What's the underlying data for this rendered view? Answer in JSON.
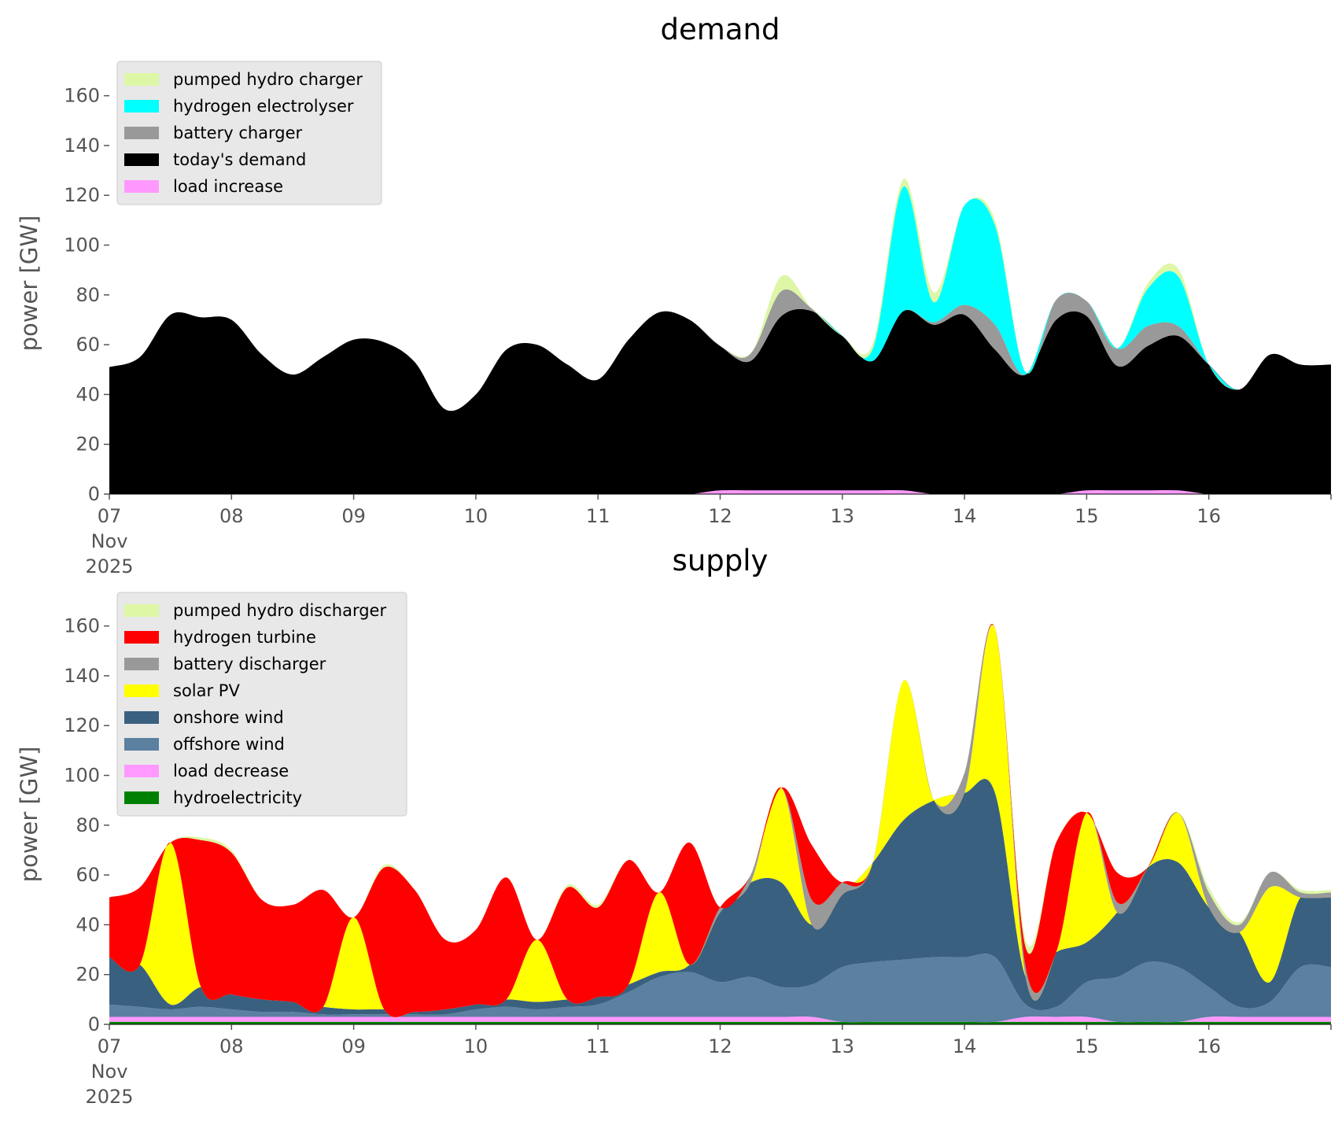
{
  "chart_data": [
    {
      "type": "area",
      "stacked": true,
      "title": "demand",
      "ylabel": "power [GW]",
      "ylim": [
        0,
        170
      ],
      "yticks": [
        0,
        20,
        40,
        60,
        80,
        100,
        120,
        140,
        160
      ],
      "xlim": [
        "2025-11-07",
        "2025-11-17"
      ],
      "xtick_labels": [
        "07\nNov\n2025",
        "08",
        "09",
        "10",
        "11",
        "12",
        "13",
        "14",
        "15",
        "16"
      ],
      "grid": false,
      "legend_position": "top-left",
      "x_hours": [
        0,
        6,
        12,
        18,
        24,
        30,
        36,
        42,
        48,
        54,
        60,
        66,
        72,
        78,
        84,
        90,
        96,
        102,
        108,
        114,
        120,
        126,
        132,
        138,
        144,
        150,
        156,
        162,
        168,
        174,
        180,
        186,
        192,
        198,
        204,
        210,
        216,
        222,
        228,
        234
      ],
      "series": [
        {
          "name": "load increase",
          "color": "#ff99ff",
          "values": [
            0,
            0,
            0,
            0,
            0,
            0,
            0,
            0,
            0,
            0,
            0,
            0,
            0,
            0,
            0,
            0,
            0,
            0,
            0,
            0,
            1.5,
            1.5,
            1.5,
            1.5,
            1.5,
            1.5,
            1.5,
            0,
            0,
            0,
            0,
            0,
            1.5,
            1.5,
            1.5,
            1.5,
            0,
            0,
            0,
            0
          ]
        },
        {
          "name": "today's demand",
          "color": "#000000",
          "values": [
            51,
            55,
            72,
            71,
            70,
            56,
            48,
            55,
            62,
            61,
            53,
            34,
            40,
            58,
            60,
            52,
            46,
            62,
            73,
            70,
            58,
            52,
            70,
            72,
            62,
            52,
            72,
            68,
            72,
            58,
            48,
            70,
            70,
            50,
            58,
            62,
            52,
            42,
            56,
            52
          ]
        },
        {
          "name": "battery charger",
          "color": "#999999",
          "values": [
            0,
            0,
            0,
            0,
            0,
            0,
            0,
            0,
            0,
            0,
            0,
            0,
            0,
            0,
            0,
            0,
            0,
            0,
            0,
            0,
            0,
            3,
            10,
            1,
            0,
            0,
            0,
            1,
            4,
            10,
            0,
            8,
            6,
            7,
            8,
            4,
            0,
            0,
            0,
            0
          ]
        },
        {
          "name": "hydrogen electrolyser",
          "color": "#00ffff",
          "values": [
            0,
            0,
            0,
            0,
            0,
            0,
            0,
            0,
            0,
            0,
            0,
            0,
            0,
            0,
            0,
            0,
            0,
            0,
            0,
            0,
            0,
            0,
            0,
            0,
            0,
            5,
            50,
            8,
            40,
            40,
            1,
            0,
            0,
            0,
            15,
            20,
            0,
            0,
            0,
            0
          ]
        },
        {
          "name": "pumped hydro charger",
          "color": "#ddf7a6",
          "values": [
            0,
            0,
            0,
            0,
            0,
            0,
            0,
            0,
            0,
            0,
            0,
            0,
            0,
            0,
            0,
            0,
            0,
            0,
            0,
            0,
            0,
            0,
            6,
            0,
            0,
            2,
            3,
            4,
            0,
            2,
            0,
            0,
            0,
            0,
            2,
            3,
            0,
            0,
            0,
            0
          ]
        }
      ]
    },
    {
      "type": "area",
      "stacked": true,
      "title": "supply",
      "ylabel": "power [GW]",
      "ylim": [
        0,
        170
      ],
      "yticks": [
        0,
        20,
        40,
        60,
        80,
        100,
        120,
        140,
        160
      ],
      "xlim": [
        "2025-11-07",
        "2025-11-17"
      ],
      "xtick_labels": [
        "07\nNov\n2025",
        "08",
        "09",
        "10",
        "11",
        "12",
        "13",
        "14",
        "15",
        "16"
      ],
      "grid": false,
      "legend_position": "top-left",
      "x_hours": [
        0,
        6,
        12,
        18,
        24,
        30,
        36,
        42,
        48,
        54,
        60,
        66,
        72,
        78,
        84,
        90,
        96,
        102,
        108,
        114,
        120,
        126,
        132,
        138,
        144,
        150,
        156,
        162,
        168,
        174,
        180,
        186,
        192,
        198,
        204,
        210,
        216,
        222,
        228,
        234
      ],
      "series": [
        {
          "name": "hydroelectricity",
          "color": "#008000",
          "values": [
            1,
            1,
            1,
            1,
            1,
            1,
            1,
            1,
            1,
            1,
            1,
            1,
            1,
            1,
            1,
            1,
            1,
            1,
            1,
            1,
            1,
            1,
            1,
            1,
            1,
            1,
            1,
            1,
            1,
            1,
            1,
            1,
            1,
            1,
            1,
            1,
            1,
            1,
            1,
            1
          ]
        },
        {
          "name": "load decrease",
          "color": "#ff99ff",
          "values": [
            2,
            2,
            2,
            2,
            2,
            2,
            2,
            2,
            2,
            2,
            2,
            2,
            2,
            2,
            2,
            2,
            2,
            2,
            2,
            2,
            2,
            2,
            2,
            2,
            0,
            0,
            0,
            0,
            0,
            0,
            2,
            2,
            2,
            0,
            0,
            0,
            2,
            2,
            2,
            2
          ]
        },
        {
          "name": "offshore wind",
          "color": "#5b80a0",
          "values": [
            5,
            4,
            3,
            4,
            3,
            2,
            2,
            1,
            1,
            1,
            1,
            1,
            3,
            4,
            3,
            4,
            5,
            10,
            16,
            18,
            14,
            16,
            12,
            13,
            22,
            24,
            25,
            26,
            26,
            26,
            5,
            4,
            14,
            18,
            24,
            22,
            12,
            4,
            6,
            20
          ]
        },
        {
          "name": "onshore wind",
          "color": "#3a6080",
          "values": [
            19,
            17,
            2,
            8,
            6,
            5,
            4,
            3,
            2,
            2,
            1,
            2,
            2,
            3,
            3,
            3,
            3,
            3,
            2,
            3,
            28,
            38,
            42,
            24,
            29,
            40,
            56,
            63,
            66,
            66,
            11,
            22,
            16,
            26,
            38,
            42,
            32,
            30,
            8,
            28
          ]
        },
        {
          "name": "solar PV",
          "color": "#ffff00",
          "values": [
            0,
            0,
            65,
            0,
            0,
            0,
            0,
            0,
            37,
            0,
            0,
            0,
            0,
            0,
            25,
            0,
            0,
            0,
            32,
            0,
            0,
            0,
            38,
            0,
            0,
            0,
            56,
            0,
            0,
            66,
            0,
            0,
            52,
            0,
            0,
            20,
            0,
            0,
            38,
            0
          ]
        },
        {
          "name": "battery discharger",
          "color": "#999999",
          "values": [
            0,
            0,
            0,
            0,
            0,
            0,
            0,
            0,
            0,
            0,
            0,
            0,
            0,
            0,
            0,
            0,
            0,
            0,
            0,
            0,
            2,
            3,
            0,
            10,
            5,
            0,
            0,
            0,
            8,
            0,
            4,
            0,
            0,
            4,
            0,
            0,
            6,
            3,
            6,
            2
          ]
        },
        {
          "name": "hydrogen turbine",
          "color": "#ff0000",
          "values": [
            24,
            31,
            0,
            59,
            57,
            40,
            39,
            47,
            0,
            57,
            49,
            28,
            30,
            49,
            0,
            45,
            36,
            50,
            0,
            49,
            0,
            0,
            0,
            22,
            0,
            0,
            0,
            0,
            0,
            0,
            8,
            44,
            0,
            12,
            0,
            0,
            0,
            0,
            0,
            0
          ]
        },
        {
          "name": "pumped hydro discharger",
          "color": "#ddf7a6",
          "values": [
            0,
            0,
            0,
            1,
            1,
            0,
            0,
            0,
            0,
            1,
            0,
            0,
            0,
            0,
            0,
            1,
            1,
            0,
            0,
            0,
            0,
            0,
            0,
            0,
            0,
            0,
            0,
            0,
            0,
            0,
            3,
            0,
            0,
            0,
            0,
            0,
            2,
            1,
            0,
            1
          ]
        }
      ]
    }
  ]
}
